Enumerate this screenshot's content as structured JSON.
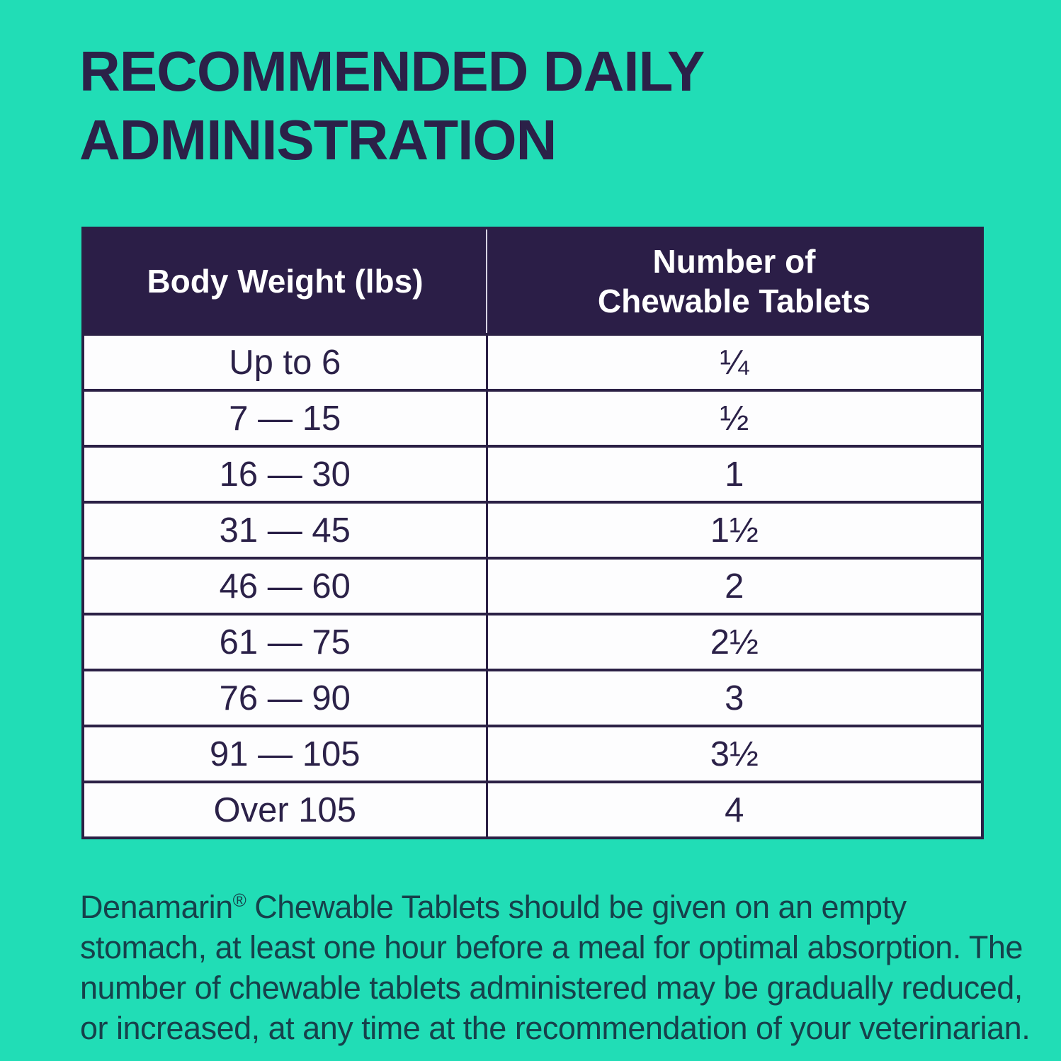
{
  "page": {
    "title": "RECOMMENDED DAILY ADMINISTRATION",
    "background_color": "#21DDB6",
    "title_color": "#2B2148"
  },
  "table": {
    "header": {
      "weight_label": "Body Weight (lbs)",
      "tablets_label": "Number of Chewable Tablets"
    },
    "header_background": "#2B1E47",
    "header_text_color": "#FFFFFF",
    "border_color": "#2B2045",
    "body_background": "#FDFDFE",
    "rows": [
      {
        "weight": "Up to 6",
        "tablets": "¼"
      },
      {
        "weight": "7 — 15",
        "tablets": "½"
      },
      {
        "weight": "16 — 30",
        "tablets": "1"
      },
      {
        "weight": "31 — 45",
        "tablets": "1½"
      },
      {
        "weight": "46 — 60",
        "tablets": "2"
      },
      {
        "weight": "61 — 75",
        "tablets": "2½"
      },
      {
        "weight": "76 — 90",
        "tablets": "3"
      },
      {
        "weight": "91 — 105",
        "tablets": "3½"
      },
      {
        "weight": "Over 105",
        "tablets": "4"
      }
    ]
  },
  "footnote": {
    "brand": "Denamarin",
    "registered_mark": "®",
    "text": " Chewable Tablets should be given on an empty stomach, at least one hour before a meal for optimal absorption. The number of chewable tablets administered may be gradually reduced, or increased, at any time at the recommendation of your veterinarian."
  }
}
